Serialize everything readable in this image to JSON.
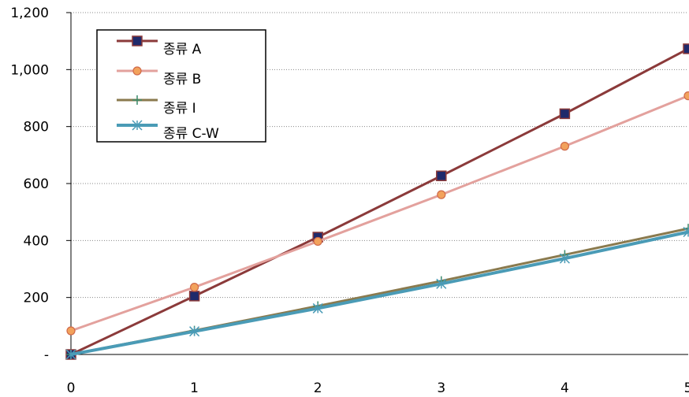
{
  "chart_data": {
    "type": "line",
    "x": [
      0,
      1,
      2,
      3,
      4,
      5
    ],
    "xlim": [
      0,
      5
    ],
    "ylim": [
      0,
      1200
    ],
    "yticks": [
      0,
      200,
      400,
      600,
      800,
      1000,
      1200
    ],
    "ytick_labels": [
      "-",
      "200",
      "400",
      "600",
      "800",
      "1,000",
      "1,200"
    ],
    "xtick_labels": [
      "0",
      "1",
      "2",
      "3",
      "4",
      "5"
    ],
    "grid": "horizontal dotted",
    "legend_position": "top-left",
    "series": [
      {
        "name": "종류 A",
        "values": [
          0,
          205,
          412,
          627,
          845,
          1073
        ],
        "color": "#8b3a3a",
        "marker": "square",
        "marker_fill": "#1f2a6b"
      },
      {
        "name": "종류 B",
        "values": [
          83,
          236,
          397,
          561,
          731,
          908
        ],
        "color": "#e3a19d",
        "marker": "circle",
        "marker_fill": "#f2a25c"
      },
      {
        "name": "종류 I",
        "values": [
          0,
          84,
          170,
          258,
          350,
          442
        ],
        "color": "#8a7a4e",
        "marker": "plus",
        "marker_fill": "#3a8a6a"
      },
      {
        "name": "종류 C-W",
        "values": [
          0,
          81,
          162,
          248,
          337,
          430
        ],
        "color": "#4a9bb6",
        "marker": "star",
        "marker_fill": "#4a9bb6"
      }
    ]
  }
}
